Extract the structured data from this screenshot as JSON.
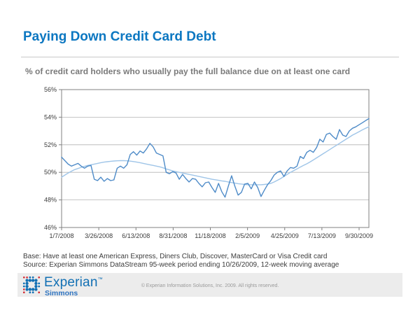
{
  "slide": {
    "title": "Paying Down Credit Card Debt",
    "subtitle": "% of credit card holders who usually pay the full balance due on at least one card",
    "base_note": "Base: Have at least one American Express, Diners Club, Discover, MasterCard or Visa Credit card",
    "source_note": "Source: Experian Simmons DataStream 95-week period ending 10/26/2009, 12-week moving average",
    "footer": {
      "brand": "Experian",
      "brand_tm": "™",
      "sub_brand": "Simmons",
      "copyright": "© Experian Information Solutions, Inc. 2009.  All rights reserved."
    },
    "colors": {
      "title_blue": "#0c77c1",
      "subtitle_gray": "#7a7a7a",
      "weekly_line": "#4e8bc8",
      "moving_avg_line": "#9fc5e8",
      "grid_gray": "#a6a6a6",
      "footer_band": "#ececec",
      "brand_blue": "#1270b4",
      "brand_red": "#d22630"
    }
  },
  "chart_data": {
    "type": "line",
    "title": "",
    "xlabel": "",
    "ylabel": "",
    "ylim": [
      46,
      56
    ],
    "y_ticks": [
      56,
      54,
      52,
      50,
      48,
      46
    ],
    "y_tick_format": "percent",
    "x_tick_labels": [
      "1/7/2008",
      "3/26/2008",
      "6/13/2008",
      "8/31/2008",
      "11/18/2008",
      "2/5/2009",
      "4/25/2009",
      "7/13/2009",
      "9/30/2009"
    ],
    "grid": true,
    "legend_position": "none",
    "x_unit": "week (95 weekly observations, 1/7/2008 - 10/26/2009)",
    "series": [
      {
        "name": "% usually paying full balance (weekly)",
        "color": "#4e8bc8",
        "values": [
          51.1,
          50.85,
          50.6,
          50.45,
          50.55,
          50.65,
          50.45,
          50.3,
          50.45,
          50.5,
          49.5,
          49.4,
          49.65,
          49.35,
          49.55,
          49.4,
          49.45,
          50.3,
          50.45,
          50.3,
          50.55,
          51.3,
          51.5,
          51.25,
          51.55,
          51.4,
          51.7,
          52.1,
          51.85,
          51.4,
          51.3,
          51.2,
          50.0,
          49.9,
          50.05,
          49.95,
          49.5,
          49.85,
          49.55,
          49.3,
          49.55,
          49.5,
          49.2,
          48.95,
          49.25,
          49.3,
          48.9,
          48.55,
          49.2,
          48.6,
          48.2,
          49.0,
          49.75,
          49.0,
          48.35,
          48.55,
          49.15,
          49.2,
          48.8,
          49.3,
          48.9,
          48.25,
          48.7,
          49.1,
          49.4,
          49.8,
          50.0,
          50.1,
          49.7,
          50.1,
          50.35,
          50.3,
          50.45,
          51.15,
          51.0,
          51.45,
          51.6,
          51.45,
          51.8,
          52.4,
          52.2,
          52.75,
          52.85,
          52.6,
          52.4,
          53.1,
          52.7,
          52.6,
          53.0,
          53.2,
          53.3,
          53.45,
          53.6,
          53.75,
          53.9
        ]
      },
      {
        "name": "12-week moving average",
        "color": "#9fc5e8",
        "values": [
          49.65,
          49.8,
          49.95,
          50.08,
          50.2,
          50.28,
          50.36,
          50.43,
          50.5,
          50.55,
          50.6,
          50.65,
          50.7,
          50.74,
          50.77,
          50.8,
          50.82,
          50.84,
          50.85,
          50.85,
          50.84,
          50.81,
          50.78,
          50.74,
          50.7,
          50.65,
          50.6,
          50.55,
          50.5,
          50.45,
          50.4,
          50.33,
          50.25,
          50.18,
          50.1,
          50.05,
          50.0,
          49.95,
          49.9,
          49.85,
          49.8,
          49.75,
          49.7,
          49.65,
          49.6,
          49.55,
          49.5,
          49.46,
          49.42,
          49.38,
          49.35,
          49.3,
          49.26,
          49.22,
          49.18,
          49.15,
          49.12,
          49.1,
          49.1,
          49.1,
          49.1,
          49.1,
          49.12,
          49.15,
          49.2,
          49.3,
          49.42,
          49.55,
          49.7,
          49.85,
          50.0,
          50.12,
          50.25,
          50.38,
          50.5,
          50.62,
          50.75,
          50.9,
          51.05,
          51.2,
          51.35,
          51.5,
          51.65,
          51.8,
          51.95,
          52.1,
          52.25,
          52.4,
          52.55,
          52.7,
          52.82,
          52.95,
          53.08,
          53.2,
          53.3
        ]
      }
    ]
  }
}
